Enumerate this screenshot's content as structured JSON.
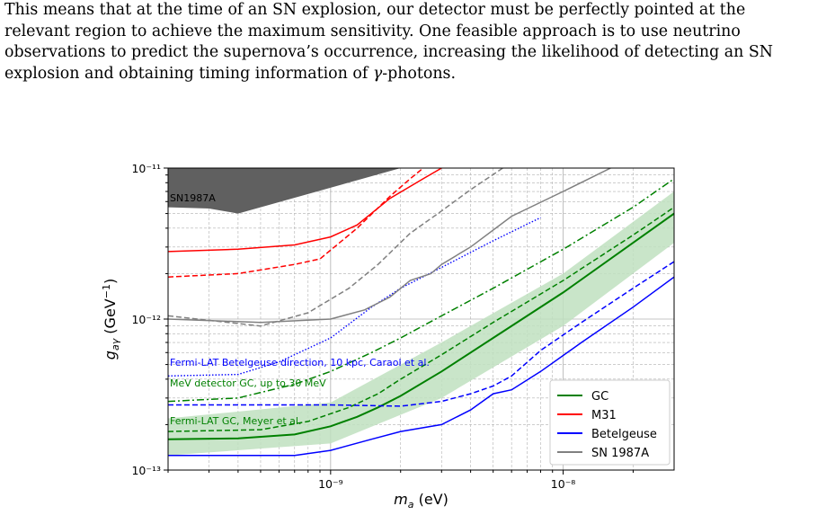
{
  "paragraph": {
    "line1": "This means that at the time of an SN explosion, our detector must be perfectly pointed at the",
    "line2": "relevant region to achieve the maximum sensitivity.  One feasible approach is to use neutrino",
    "line3": "observations to predict the supernova’s occurrence, increasing the likelihood of detecting an SN",
    "line4_pre": "explosion and obtaining timing information of ",
    "line4_gamma": "γ",
    "line4_post": "-photons."
  },
  "chart_data": {
    "type": "line",
    "xscale": "log",
    "yscale": "log",
    "xlim": [
      2e-10,
      3e-08
    ],
    "ylim": [
      1e-13,
      1e-11
    ],
    "xlabel": "m_a (eV)",
    "ylabel": "g_aγ (GeV⁻¹)",
    "xtick_labels": [
      "10⁻⁹",
      "10⁻⁸"
    ],
    "ytick_labels": [
      "10⁻¹¹",
      "10⁻¹²",
      "10⁻¹³"
    ],
    "grid": true,
    "legend_position": "lower-right",
    "legend": [
      "GC",
      "M31",
      "Betelgeuse",
      "SN 1987A"
    ],
    "colors": {
      "GC": "#008000",
      "M31": "#ff0000",
      "Betelgeuse": "#0000ff",
      "SN1987A": "#808080",
      "excluded": "#606060",
      "band": "#bfe0bf"
    },
    "annotations": [
      {
        "text": "SN1987A",
        "color": "#000000"
      },
      {
        "text": "Fermi-LAT Betelgeuse direction, 10 kpc, Caraol et al.",
        "color": "#0000ff"
      },
      {
        "text": "MeV detector GC, up to 30 MeV",
        "color": "#008000"
      },
      {
        "text": "Fermi-LAT GC, Meyer et al.",
        "color": "#008000"
      }
    ],
    "excluded_region": {
      "name": "SN1987A",
      "x": [
        2e-10,
        3e-10,
        4e-10,
        2e-09
      ],
      "lower": [
        5.5e-12,
        5.4e-12,
        5e-12,
        1e-11
      ]
    },
    "gc_band": {
      "x": [
        2e-10,
        1e-09,
        3e-09,
        1e-08,
        3e-08
      ],
      "lower": [
        1.25e-13,
        1.5e-13,
        3e-13,
        9e-13,
        3.2e-12
      ],
      "upper": [
        2.2e-13,
        2.8e-13,
        7e-13,
        2e-12,
        7e-12
      ]
    },
    "series": [
      {
        "name": "GC",
        "style": "solid",
        "color": "#008000",
        "x": [
          2e-10,
          4e-10,
          7e-10,
          1e-09,
          1.3e-09,
          1.6e-09,
          2e-09,
          3e-09,
          5e-09,
          1e-08,
          2e-08,
          3e-08
        ],
        "y": [
          1.6e-13,
          1.62e-13,
          1.72e-13,
          1.95e-13,
          2.25e-13,
          2.6e-13,
          3.1e-13,
          4.5e-13,
          7.5e-13,
          1.5e-12,
          3.2e-12,
          5e-12
        ]
      },
      {
        "style": "dashed",
        "color": "#008000",
        "x": [
          2e-10,
          5e-10,
          8e-10,
          1.2e-09,
          1.6e-09,
          2e-09,
          3e-09,
          5e-09,
          1e-08,
          2e-08,
          3e-08
        ],
        "y": [
          1.8e-13,
          1.85e-13,
          2.1e-13,
          2.6e-13,
          3.2e-13,
          4e-13,
          5.8e-13,
          9.5e-13,
          1.8e-12,
          3.6e-12,
          5.5e-12
        ]
      },
      {
        "style": "dashdot",
        "color": "#008000",
        "x": [
          2e-10,
          4e-10,
          7e-10,
          1e-09,
          1.5e-09,
          2e-09,
          3e-09,
          5e-09,
          1e-08,
          2e-08,
          3e-08
        ],
        "y": [
          2.85e-13,
          3e-13,
          3.7e-13,
          4.5e-13,
          6e-13,
          7.5e-13,
          1.05e-12,
          1.6e-12,
          2.9e-12,
          5.5e-12,
          8.5e-12
        ]
      },
      {
        "name": "M31",
        "style": "solid",
        "color": "#ff0000",
        "x": [
          2e-10,
          4e-10,
          7e-10,
          1e-09,
          1.3e-09,
          1.8e-09,
          2.5e-09,
          3e-09
        ],
        "y": [
          2.8e-12,
          2.9e-12,
          3.1e-12,
          3.5e-12,
          4.2e-12,
          6.3e-12,
          8.5e-12,
          1e-11
        ]
      },
      {
        "style": "dashed",
        "color": "#ff0000",
        "x": [
          2e-10,
          4e-10,
          7e-10,
          9e-10,
          1.3e-09,
          1.8e-09,
          2.2e-09,
          2.5e-09
        ],
        "y": [
          1.9e-12,
          2e-12,
          2.3e-12,
          2.5e-12,
          4e-12,
          6.5e-12,
          8.5e-12,
          1e-11
        ]
      },
      {
        "name": "Betelgeuse",
        "style": "solid",
        "color": "#0000ff",
        "x": [
          2e-10,
          7e-10,
          1e-09,
          1.5e-09,
          2e-09,
          3e-09,
          4e-09,
          5e-09,
          6e-09,
          8e-09,
          1.2e-08,
          2e-08,
          3e-08
        ],
        "y": [
          1.25e-13,
          1.25e-13,
          1.35e-13,
          1.6e-13,
          1.8e-13,
          2e-13,
          2.5e-13,
          3.2e-13,
          3.4e-13,
          4.5e-13,
          7e-13,
          1.2e-12,
          1.9e-12
        ]
      },
      {
        "style": "dashed",
        "color": "#0000ff",
        "x": [
          2e-10,
          1e-09,
          2e-09,
          3e-09,
          4e-09,
          5e-09,
          6e-09,
          8e-09,
          1.2e-08,
          2e-08,
          3e-08
        ],
        "y": [
          2.7e-13,
          2.7e-13,
          2.65e-13,
          2.85e-13,
          3.2e-13,
          3.6e-13,
          4.2e-13,
          6.2e-13,
          9.5e-13,
          1.6e-12,
          2.4e-12
        ]
      },
      {
        "style": "dotted",
        "color": "#0000ff",
        "x": [
          2e-10,
          4e-10,
          6e-10,
          1e-09,
          1.5e-09,
          2e-09,
          3e-09,
          5e-09,
          8e-09
        ],
        "y": [
          4.2e-13,
          4.3e-13,
          5.2e-13,
          7.5e-13,
          1.2e-12,
          1.6e-12,
          2.2e-12,
          3.3e-12,
          4.7e-12
        ]
      },
      {
        "name": "SN 1987A",
        "style": "solid",
        "color": "#808080",
        "x": [
          2e-10,
          5e-10,
          1e-09,
          1.4e-09,
          1.8e-09,
          2.2e-09,
          2.7e-09,
          3e-09,
          4e-09,
          6e-09,
          1e-08,
          1.6e-08
        ],
        "y": [
          1e-12,
          9.5e-13,
          1e-12,
          1.15e-12,
          1.4e-12,
          1.8e-12,
          2e-12,
          2.3e-12,
          3e-12,
          4.8e-12,
          7e-12,
          1e-11
        ]
      },
      {
        "style": "dashed",
        "color": "#808080",
        "x": [
          2e-10,
          5e-10,
          8e-10,
          1.2e-09,
          1.6e-09,
          2.2e-09,
          3e-09,
          4e-09,
          5.5e-09
        ],
        "y": [
          1.05e-12,
          9e-13,
          1.1e-12,
          1.6e-12,
          2.3e-12,
          3.7e-12,
          5.2e-12,
          7.2e-12,
          1e-11
        ]
      }
    ]
  }
}
